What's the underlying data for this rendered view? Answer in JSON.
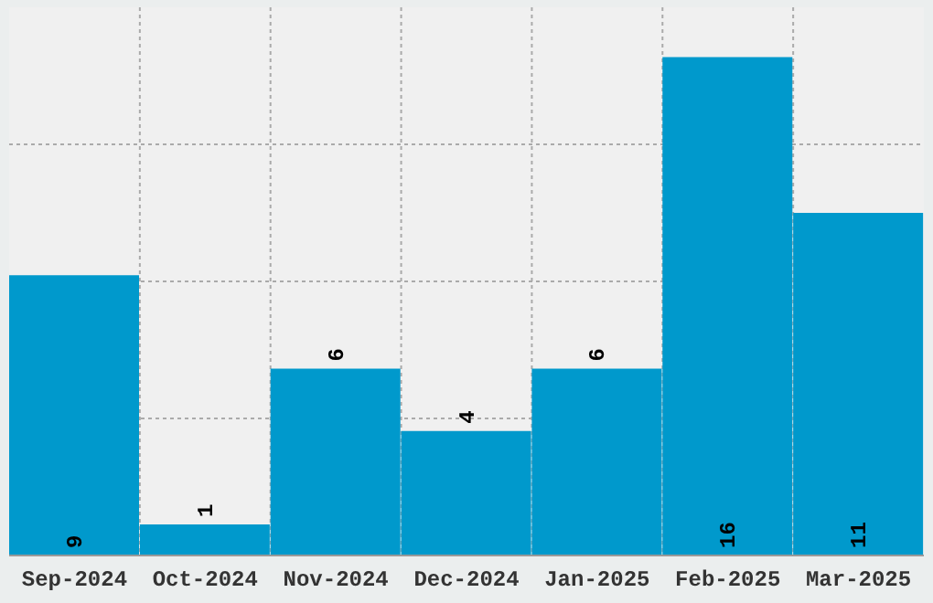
{
  "chart_data": {
    "type": "bar",
    "categories": [
      "Sep-2024",
      "Oct-2024",
      "Nov-2024",
      "Dec-2024",
      "Jan-2025",
      "Feb-2025",
      "Mar-2025"
    ],
    "values": [
      9,
      1,
      6,
      4,
      6,
      16,
      11
    ],
    "color": "#0099cc",
    "ylim": [
      0,
      17.6
    ],
    "grid": true,
    "data_labels": true,
    "tick_labels": "x"
  }
}
